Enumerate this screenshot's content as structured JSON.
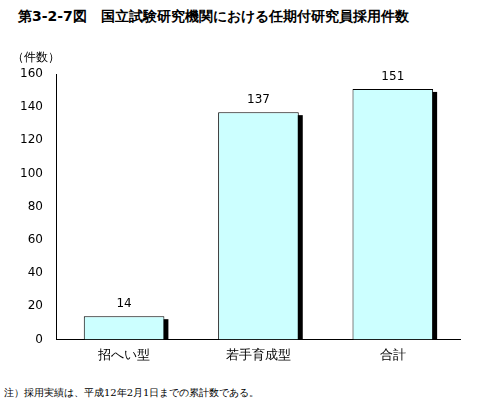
{
  "chart_data": {
    "type": "bar",
    "title": "第3-2-7図　国立試験研究機関における任期付研究員採用件数",
    "ylabel": "（件数）",
    "categories": [
      "招へい型",
      "若手育成型",
      "合計"
    ],
    "values": [
      14,
      137,
      151
    ],
    "color": "#ccffff",
    "ylim": [
      0,
      160
    ],
    "yticks": [
      0,
      20,
      40,
      60,
      80,
      100,
      120,
      140,
      160
    ],
    "grid": false,
    "data_labels": true,
    "annotation": "注）採用実績は、平成12年2月1日までの累計数である。"
  }
}
